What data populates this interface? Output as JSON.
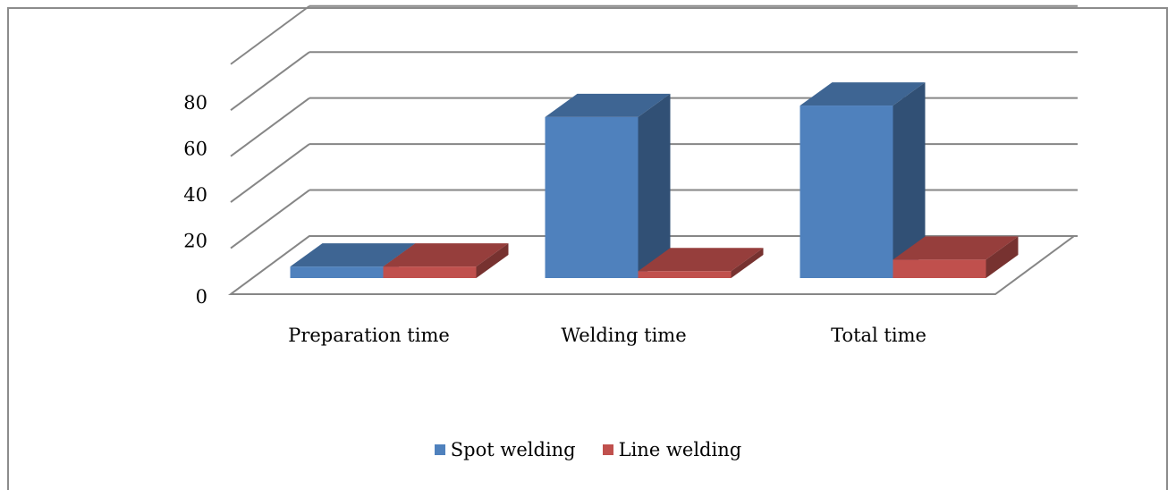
{
  "chart_data": {
    "type": "bar",
    "title": "",
    "xlabel": "",
    "ylabel": "",
    "categories": [
      "Preparation time",
      "Welding time",
      "Total time"
    ],
    "series": [
      {
        "name": "Spot welding",
        "values": [
          5,
          70,
          75
        ],
        "color": "#4f81bd"
      },
      {
        "name": "Line welding",
        "values": [
          5,
          3,
          8
        ],
        "color": "#c0504d"
      }
    ],
    "ylim": [
      0,
      80
    ],
    "yticks": [
      "0",
      "20",
      "40",
      "60",
      "80"
    ],
    "grid": true,
    "legend_position": "bottom",
    "projection": "3d"
  }
}
